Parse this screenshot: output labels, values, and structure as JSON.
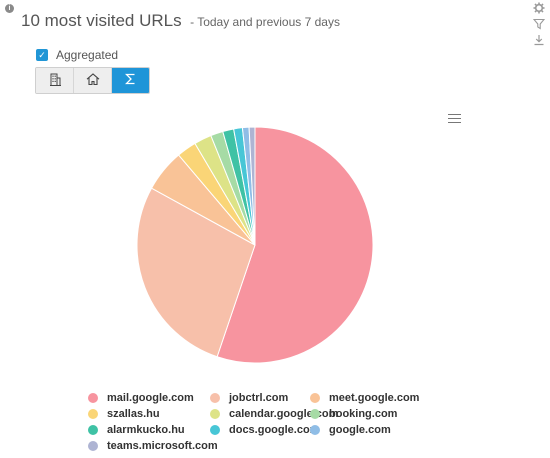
{
  "header": {
    "title": "10 most visited URLs",
    "subtitle": "- Today and previous 7 days"
  },
  "aggregated": {
    "label": "Aggregated",
    "checked": true
  },
  "view_buttons": [
    {
      "icon": "building-icon",
      "active": false
    },
    {
      "icon": "home-icon",
      "active": false
    },
    {
      "icon": "sigma-icon",
      "active": true
    }
  ],
  "colors": {
    "accent": "#1f95d8"
  },
  "chart_data": {
    "type": "pie",
    "categories": [
      "mail.google.com",
      "jobctrl.com",
      "meet.google.com",
      "szallas.hu",
      "calendar.google.com",
      "booking.com",
      "alarmkucko.hu",
      "docs.google.com",
      "google.com",
      "teams.microsoft.com"
    ],
    "values": [
      55.2,
      27.8,
      5.8,
      2.7,
      2.4,
      1.7,
      1.5,
      1.2,
      0.9,
      0.8
    ],
    "colors": [
      "#f7949f",
      "#f7c0aa",
      "#f9c397",
      "#fad577",
      "#dde387",
      "#a6dba5",
      "#3fc2a5",
      "#47c6d6",
      "#8fbde6",
      "#aeb4d3"
    ],
    "legend_position": "bottom"
  }
}
